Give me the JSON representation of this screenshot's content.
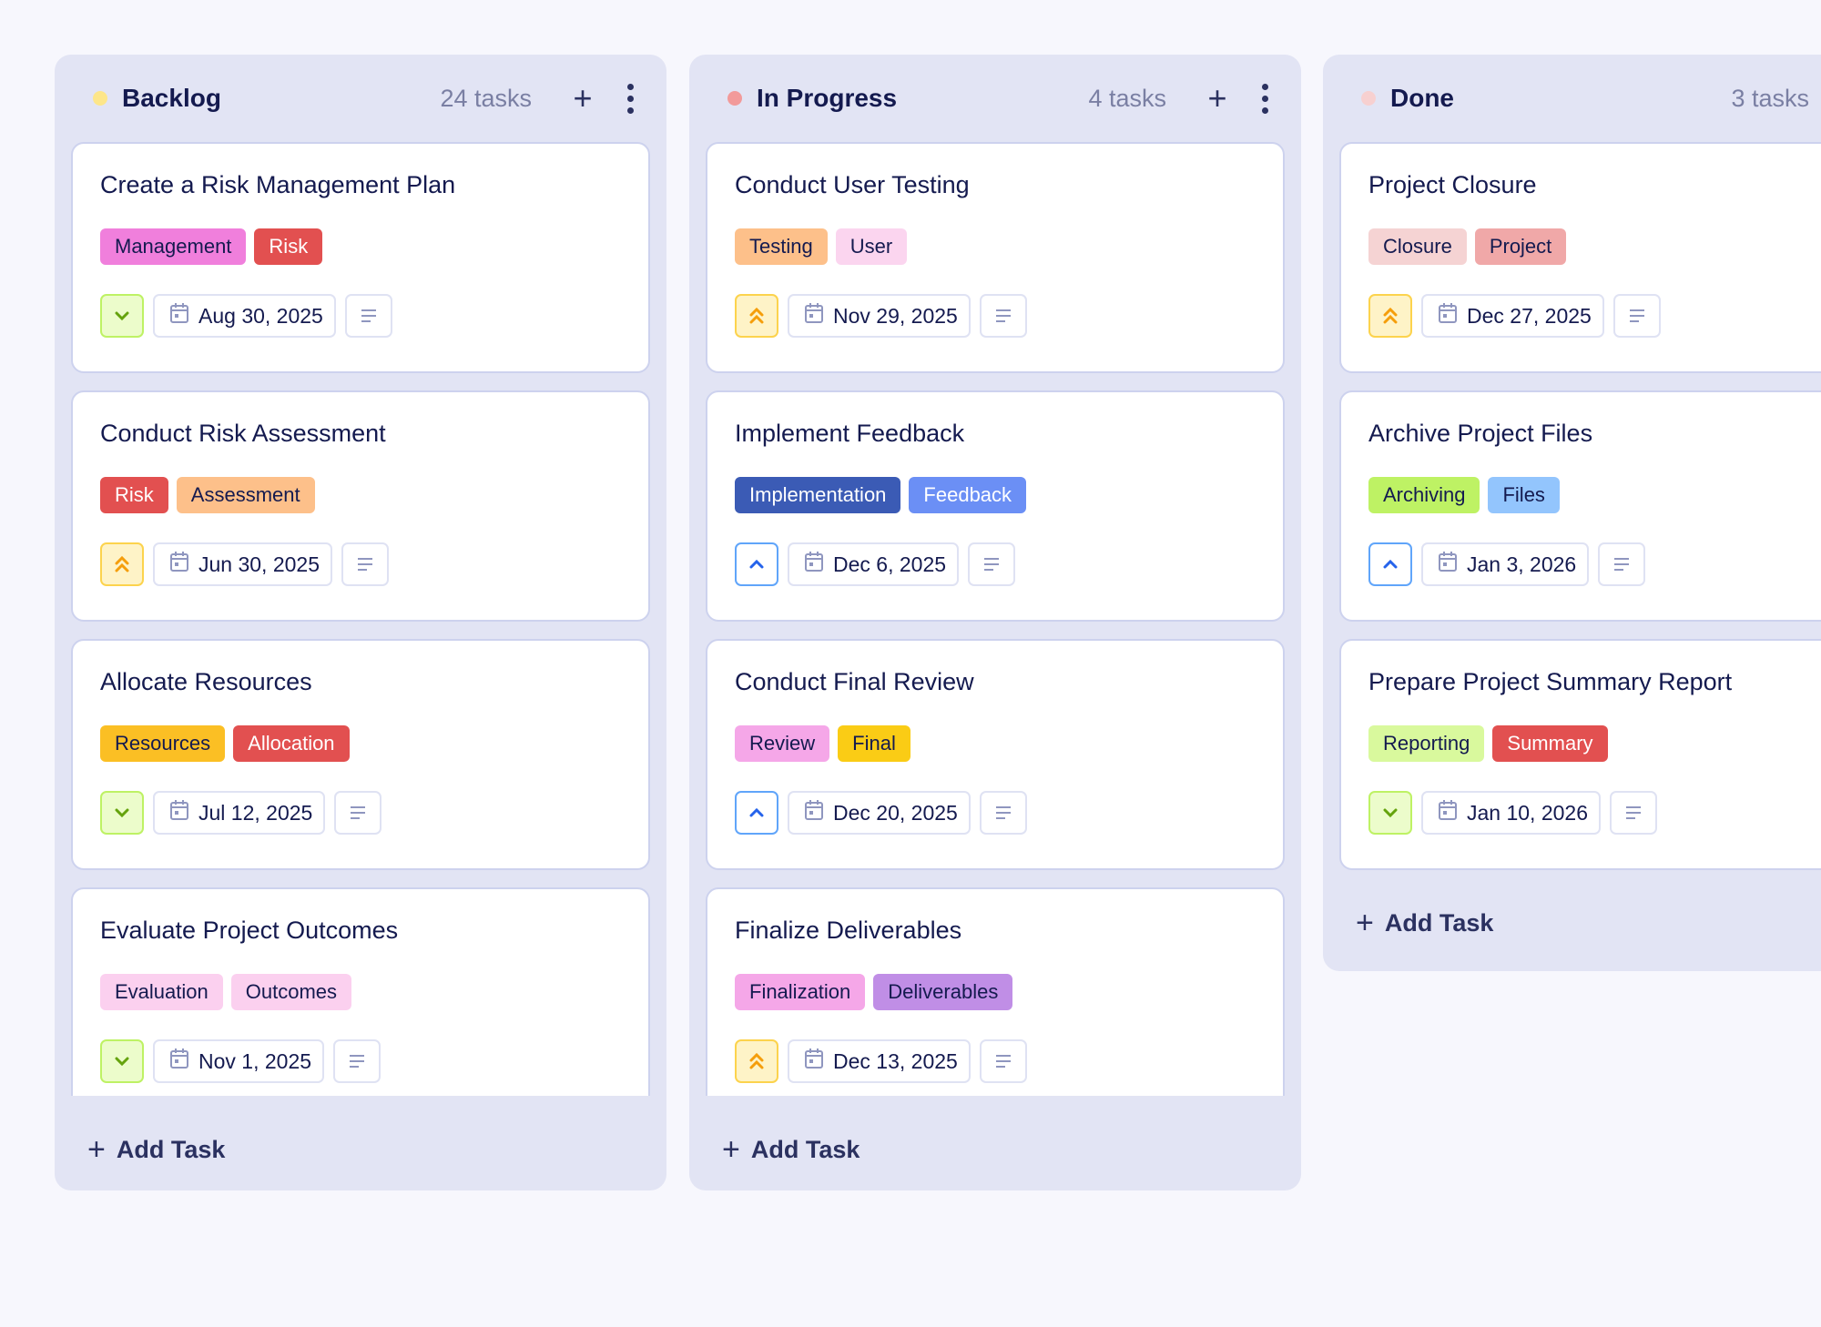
{
  "columns": [
    {
      "title": "Backlog",
      "count": "24 tasks",
      "dot": "#fde68a",
      "show_actions": true,
      "add_label": "Add Task",
      "cards": [
        {
          "title": "Create a Risk Management Plan",
          "tags": [
            {
              "label": "Management",
              "bg": "#f07fdc",
              "fg": "#141a4f"
            },
            {
              "label": "Risk",
              "bg": "#e25050",
              "fg": "#ffffff"
            }
          ],
          "priority": "low",
          "date": "Aug 30, 2025"
        },
        {
          "title": "Conduct Risk Assessment",
          "tags": [
            {
              "label": "Risk",
              "bg": "#e25050",
              "fg": "#ffffff"
            },
            {
              "label": "Assessment",
              "bg": "#fdc08a",
              "fg": "#141a4f"
            }
          ],
          "priority": "high",
          "date": "Jun 30, 2025"
        },
        {
          "title": "Allocate Resources",
          "tags": [
            {
              "label": "Resources",
              "bg": "#fbbf24",
              "fg": "#141a4f"
            },
            {
              "label": "Allocation",
              "bg": "#e25050",
              "fg": "#ffffff"
            }
          ],
          "priority": "low",
          "date": "Jul 12, 2025"
        },
        {
          "title": "Evaluate Project Outcomes",
          "tags": [
            {
              "label": "Evaluation",
              "bg": "#fbd0ef",
              "fg": "#141a4f"
            },
            {
              "label": "Outcomes",
              "bg": "#fbd0ef",
              "fg": "#141a4f"
            }
          ],
          "priority": "low",
          "date": "Nov 1, 2025"
        }
      ]
    },
    {
      "title": "In Progress",
      "count": "4 tasks",
      "dot": "#f29a9a",
      "show_actions": true,
      "add_label": "Add Task",
      "cards": [
        {
          "title": "Conduct User Testing",
          "tags": [
            {
              "label": "Testing",
              "bg": "#fdc08a",
              "fg": "#141a4f"
            },
            {
              "label": "User",
              "bg": "#fbd5ef",
              "fg": "#141a4f"
            }
          ],
          "priority": "high",
          "date": "Nov 29, 2025"
        },
        {
          "title": "Implement Feedback",
          "tags": [
            {
              "label": "Implementation",
              "bg": "#3b5bb5",
              "fg": "#ffffff"
            },
            {
              "label": "Feedback",
              "bg": "#6b8ff5",
              "fg": "#ffffff"
            }
          ],
          "priority": "medium",
          "date": "Dec 6, 2025"
        },
        {
          "title": "Conduct Final Review",
          "tags": [
            {
              "label": "Review",
              "bg": "#f5a7e8",
              "fg": "#141a4f"
            },
            {
              "label": "Final",
              "bg": "#facc15",
              "fg": "#141a4f"
            }
          ],
          "priority": "medium",
          "date": "Dec 20, 2025"
        },
        {
          "title": "Finalize Deliverables",
          "tags": [
            {
              "label": "Finalization",
              "bg": "#f5a7e8",
              "fg": "#141a4f"
            },
            {
              "label": "Deliverables",
              "bg": "#c08ee6",
              "fg": "#141a4f"
            }
          ],
          "priority": "high",
          "date": "Dec 13, 2025"
        }
      ]
    },
    {
      "title": "Done",
      "count": "3 tasks",
      "dot": "#f7d0d0",
      "show_actions": false,
      "add_label": "Add Task",
      "cards": [
        {
          "title": "Project Closure",
          "tags": [
            {
              "label": "Closure",
              "bg": "#f5d3d3",
              "fg": "#141a4f"
            },
            {
              "label": "Project",
              "bg": "#f0a8a8",
              "fg": "#141a4f"
            }
          ],
          "priority": "high",
          "date": "Dec 27, 2025"
        },
        {
          "title": "Archive Project Files",
          "tags": [
            {
              "label": "Archiving",
              "bg": "#bef264",
              "fg": "#141a4f"
            },
            {
              "label": "Files",
              "bg": "#93c5fd",
              "fg": "#141a4f"
            }
          ],
          "priority": "medium",
          "date": "Jan 3, 2026"
        },
        {
          "title": "Prepare Project Summary Report",
          "tags": [
            {
              "label": "Reporting",
              "bg": "#d9f99d",
              "fg": "#141a4f"
            },
            {
              "label": "Summary",
              "bg": "#e25050",
              "fg": "#ffffff"
            }
          ],
          "priority": "low",
          "date": "Jan 10, 2026"
        }
      ]
    }
  ]
}
